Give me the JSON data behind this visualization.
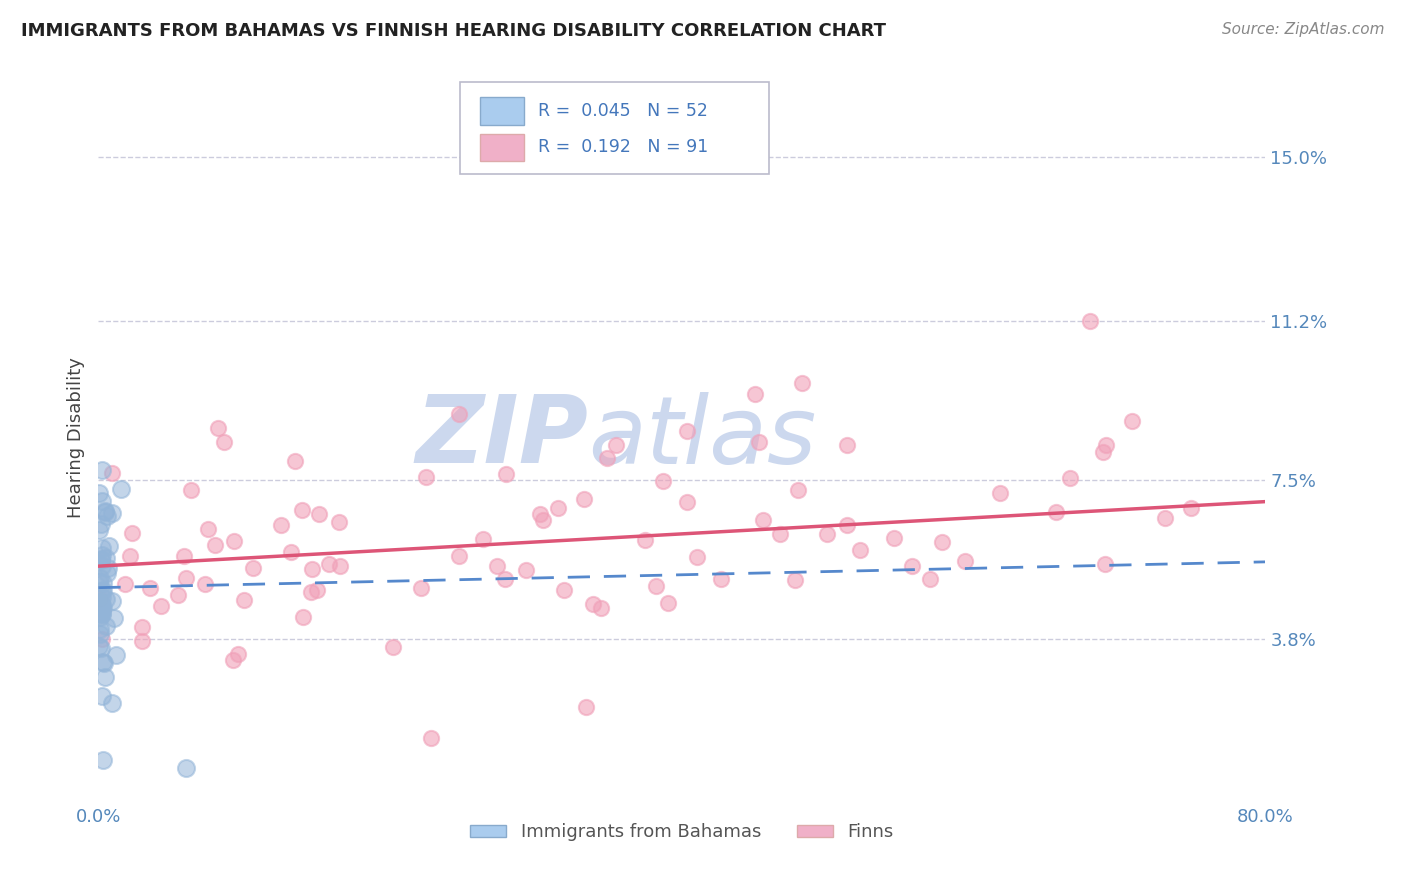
{
  "title": "IMMIGRANTS FROM BAHAMAS VS FINNISH HEARING DISABILITY CORRELATION CHART",
  "source_text": "Source: ZipAtlas.com",
  "ylabel": "Hearing Disability",
  "y_tick_labels": [
    "3.8%",
    "7.5%",
    "11.2%",
    "15.0%"
  ],
  "y_tick_values": [
    3.8,
    7.5,
    11.2,
    15.0
  ],
  "xlim": [
    0.0,
    80.0
  ],
  "ylim": [
    0.0,
    17.0
  ],
  "legend_r_blue": "R =  0.045",
  "legend_n_blue": "N = 52",
  "legend_r_pink": "R =  0.192",
  "legend_n_pink": "N = 91",
  "bottom_legend": [
    "Immigrants from Bahamas",
    "Finns"
  ],
  "blue_scatter_color": "#92b4d8",
  "pink_scatter_color": "#f0a0b8",
  "blue_line_color": "#5588cc",
  "pink_line_color": "#dd5577",
  "watermark_zip": "ZIP",
  "watermark_atlas": "atlas",
  "watermark_color": "#ccd8ee",
  "background_color": "#ffffff",
  "grid_color": "#ccccdd",
  "blue_line_y_start": 5.0,
  "blue_line_y_end": 5.6,
  "pink_line_y_start": 5.5,
  "pink_line_y_end": 7.0
}
